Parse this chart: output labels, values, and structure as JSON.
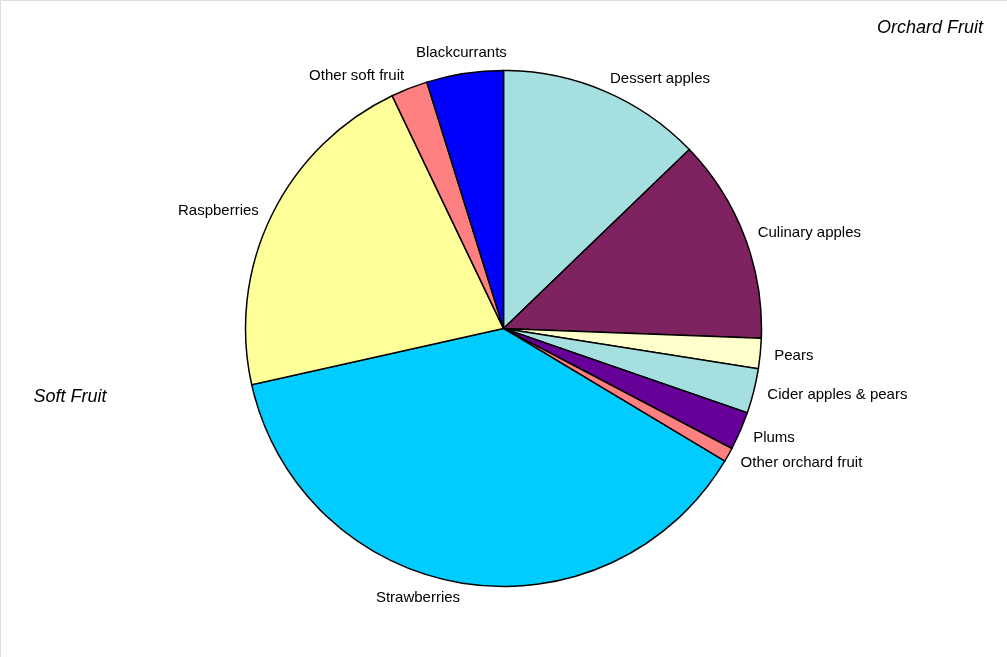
{
  "chart_data": {
    "type": "pie",
    "categories": [
      "Dessert apples",
      "Culinary apples",
      "Pears",
      "Cider apples & pears",
      "Plums",
      "Other orchard fruit",
      "Strawberries",
      "Raspberries",
      "Other soft fruit",
      "Blackcurrants"
    ],
    "values": [
      12.8,
      12.8,
      1.9,
      2.8,
      2.4,
      0.9,
      37.9,
      21.4,
      2.3,
      4.8
    ],
    "colors": [
      "#a6dfe0",
      "#7f2360",
      "#ffffcc",
      "#a6dfe0",
      "#660099",
      "#ff8080",
      "#00ccff",
      "#ffff99",
      "#ff8080",
      "#0000ff"
    ],
    "annotations": [
      "Orchard Fruit",
      "Soft Fruit"
    ],
    "legend": false
  }
}
